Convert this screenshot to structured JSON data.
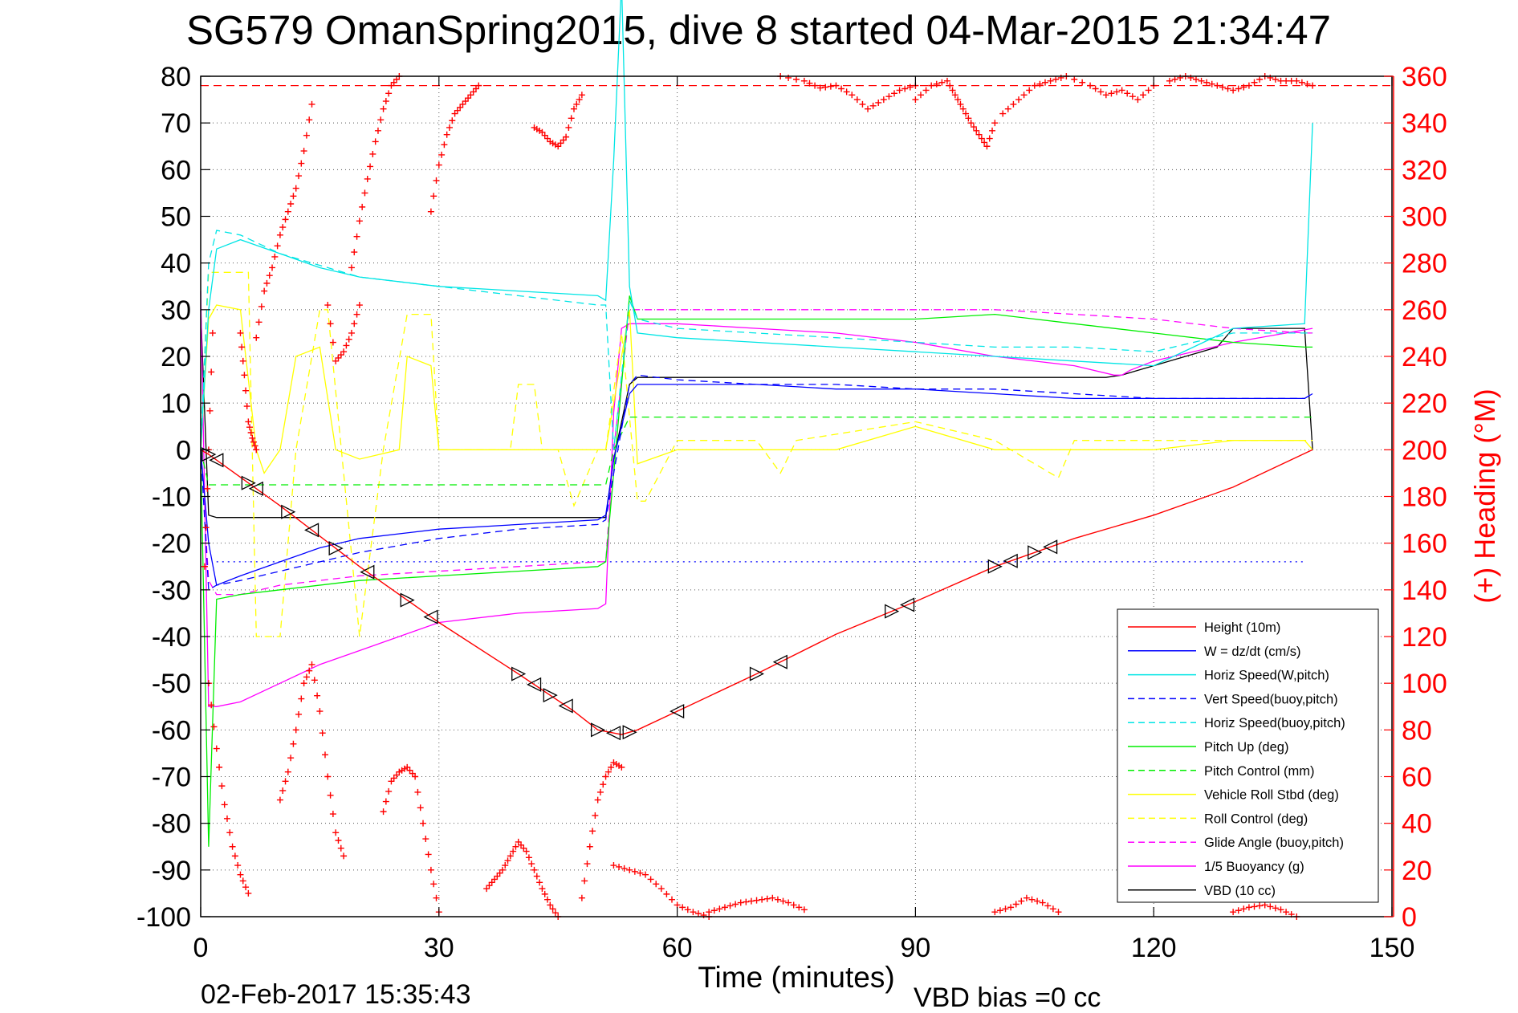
{
  "chart_data": {
    "type": "line",
    "title": "SG579 OmanSpring2015, dive 8 started 04-Mar-2015 21:34:47",
    "xlabel": "Time (minutes)",
    "ylabel_right": "(+) Heading (°M)",
    "xlim": [
      0,
      150
    ],
    "ylim": [
      -100,
      80
    ],
    "ylim_right": [
      0,
      360
    ],
    "x_ticks": [
      "0",
      "30",
      "60",
      "90",
      "120",
      "150"
    ],
    "y_ticks": [
      "80",
      "70",
      "60",
      "50",
      "40",
      "30",
      "20",
      "10",
      "0",
      "-10",
      "-20",
      "-30",
      "-40",
      "-50",
      "-60",
      "-70",
      "-80",
      "-90",
      "-100"
    ],
    "y_right_ticks": [
      "360",
      "340",
      "320",
      "300",
      "280",
      "260",
      "240",
      "220",
      "200",
      "180",
      "160",
      "140",
      "120",
      "100",
      "80",
      "60",
      "40",
      "20",
      "0"
    ],
    "grid": true,
    "legend_position": "bottom-right",
    "footer_left": "02-Feb-2017 15:35:43",
    "footer_right": "VBD bias =0 cc",
    "colors": {
      "red": "#ff0000",
      "blue": "#0000ff",
      "cyan": "#00e5e5",
      "green": "#00ee00",
      "yellow": "#ffff00",
      "magenta": "#ff00ff",
      "black": "#000000"
    },
    "series": [
      {
        "name": "Height (10m)",
        "color": "#ff0000",
        "style": "solid",
        "x": [
          0,
          1,
          10,
          20,
          30,
          40,
          47,
          50,
          53,
          55,
          60,
          70,
          80,
          90,
          100,
          110,
          120,
          130,
          140
        ],
        "y": [
          0,
          -1,
          -12,
          -25,
          -37,
          -48,
          -56,
          -60,
          -61,
          -60,
          -56,
          -48,
          -39.5,
          -32.5,
          -25,
          -19,
          -14,
          -8,
          0
        ]
      },
      {
        "name": "W = dz/dt (cm/s)",
        "color": "#0000ff",
        "style": "solid",
        "x": [
          0,
          1,
          2,
          5,
          10,
          15,
          20,
          30,
          40,
          50,
          51,
          52,
          53,
          54,
          55,
          60,
          70,
          80,
          90,
          100,
          110,
          120,
          130,
          139,
          140
        ],
        "y": [
          0,
          -20,
          -29,
          -27,
          -24,
          -21,
          -19,
          -17,
          -16,
          -15,
          -14,
          -2,
          5,
          12,
          14,
          14,
          14,
          13,
          13,
          12,
          11,
          11,
          11,
          11,
          12
        ]
      },
      {
        "name": "Horiz Speed(W,pitch)",
        "color": "#00e5e5",
        "style": "solid",
        "x": [
          0,
          1,
          2,
          5,
          10,
          15,
          20,
          30,
          40,
          50,
          51,
          52,
          53,
          54,
          55,
          60,
          70,
          80,
          90,
          100,
          110,
          120,
          125,
          130,
          139,
          140
        ],
        "y": [
          0,
          30,
          43,
          45,
          42,
          39,
          37,
          35,
          34,
          33,
          32,
          62,
          100,
          35,
          25,
          24,
          23,
          22,
          21,
          20,
          19,
          18,
          22,
          26,
          27,
          70
        ]
      },
      {
        "name": "Vert Speed(buoy,pitch)",
        "color": "#0000ff",
        "style": "dashed",
        "x": [
          0,
          1,
          2,
          5,
          10,
          20,
          30,
          40,
          50,
          51,
          52,
          54,
          55,
          60,
          70,
          80,
          90,
          100,
          110,
          120,
          130,
          139,
          140
        ],
        "y": [
          0,
          -30,
          -29,
          -28,
          -26,
          -22,
          -19,
          -17,
          -16,
          -15,
          -5,
          14,
          16,
          15,
          14,
          14,
          13,
          13,
          12,
          11,
          11,
          11,
          12
        ]
      },
      {
        "name": "Horiz Speed(buoy,pitch)",
        "color": "#00e5e5",
        "style": "dashed",
        "x": [
          0,
          1,
          2,
          5,
          10,
          20,
          30,
          40,
          50,
          51,
          52,
          54,
          55,
          60,
          70,
          80,
          90,
          100,
          110,
          120,
          130,
          139,
          140
        ],
        "y": [
          0,
          40,
          47,
          46,
          42,
          37,
          35,
          33,
          31,
          31,
          0,
          32,
          28,
          26,
          25,
          24,
          23,
          22,
          22,
          21,
          25,
          25,
          25
        ]
      },
      {
        "name": "Pitch Up (deg)",
        "color": "#00ee00",
        "style": "solid",
        "x": [
          0,
          1,
          2,
          5,
          10,
          20,
          30,
          40,
          50,
          51,
          52,
          54,
          55,
          60,
          70,
          80,
          90,
          100,
          110,
          120,
          130,
          139,
          140
        ],
        "y": [
          0,
          -85,
          -32,
          -31,
          -30,
          -28,
          -27,
          -26,
          -25,
          -24,
          -5,
          33,
          28,
          28,
          28,
          28,
          28,
          29,
          27,
          25,
          23,
          22,
          22
        ]
      },
      {
        "name": "Pitch Control (mm)",
        "color": "#00ee00",
        "style": "dashed",
        "x": [
          0,
          1,
          2,
          5,
          50,
          51,
          52,
          54,
          55,
          140
        ],
        "y": [
          0,
          -7.5,
          -7.5,
          -7.5,
          -7.5,
          -7.5,
          0,
          7,
          7,
          7
        ]
      },
      {
        "name": "Vehicle Roll Stbd (deg)",
        "color": "#ffff00",
        "style": "solid",
        "x": [
          0,
          1,
          2,
          5,
          7,
          8,
          10,
          12,
          15,
          17,
          20,
          25,
          26,
          29,
          30,
          40,
          50,
          51,
          54,
          55,
          60,
          70,
          80,
          90,
          100,
          110,
          120,
          130,
          139,
          140
        ],
        "y": [
          0,
          28,
          31,
          30,
          0,
          -5,
          0,
          20,
          22,
          0,
          -2,
          0,
          20,
          18,
          0,
          0,
          0,
          0,
          30,
          -3,
          0,
          0,
          0,
          5,
          0,
          0,
          0,
          2,
          2,
          0
        ]
      },
      {
        "name": "Roll Control (deg)",
        "color": "#ffff00",
        "style": "dashed",
        "x": [
          0,
          1,
          2,
          6,
          7,
          10,
          12,
          15,
          16,
          20,
          23,
          26,
          29,
          30,
          39,
          40,
          42,
          43,
          45,
          47,
          50,
          51,
          53,
          55,
          56,
          60,
          70,
          73,
          75,
          90,
          100,
          108,
          110,
          140
        ],
        "y": [
          0,
          38,
          38,
          38,
          -40,
          -40,
          0,
          30,
          30,
          -40,
          0,
          29,
          29,
          0,
          0,
          14,
          14,
          0,
          0,
          -12,
          0,
          0,
          25,
          -11,
          -11,
          2,
          2,
          -5,
          2,
          6,
          2,
          -6,
          2,
          2
        ]
      },
      {
        "name": "Glide Angle (buoy,pitch)",
        "color": "#ff00ff",
        "style": "dashed",
        "x": [
          0,
          1,
          2,
          5,
          10,
          20,
          30,
          40,
          50,
          51,
          52,
          54,
          55,
          60,
          70,
          80,
          90,
          100,
          110,
          120,
          130,
          139,
          140
        ],
        "y": [
          0,
          -28,
          -31,
          -31,
          -29,
          -27,
          -26,
          -25,
          -24,
          -24,
          0,
          30,
          30,
          30,
          30,
          30,
          30,
          30,
          29,
          28,
          26,
          25,
          25
        ]
      },
      {
        "name": "1/5 Buoyancy (g)",
        "color": "#ff00ff",
        "style": "solid",
        "x": [
          0,
          1,
          2,
          5,
          10,
          15,
          20,
          25,
          30,
          40,
          50,
          51,
          52,
          53,
          54,
          55,
          60,
          70,
          80,
          90,
          100,
          110,
          115,
          116,
          117,
          120,
          130,
          140
        ],
        "y": [
          34,
          -55,
          -55,
          -54,
          -50,
          -46,
          -43,
          -40,
          -37,
          -35,
          -34,
          -33,
          8,
          26,
          27,
          27,
          27,
          26,
          25,
          23,
          20,
          18,
          16,
          16,
          17,
          19,
          23,
          26
        ]
      },
      {
        "name": "VBD (10 cc)",
        "color": "#000000",
        "style": "solid",
        "x": [
          0,
          1,
          2,
          51,
          52,
          54,
          55,
          60,
          114,
          116,
          118,
          120,
          122,
          124,
          126,
          128,
          130,
          139,
          140
        ],
        "y": [
          30,
          -14,
          -14.5,
          -14.5,
          -2,
          14,
          15.5,
          15.5,
          15.5,
          16,
          17,
          18,
          19,
          20,
          21,
          22,
          26,
          26,
          0
        ]
      },
      {
        "name": "Blue dotted reference",
        "color": "#0000ff",
        "style": "dotted",
        "x": [
          2,
          139
        ],
        "y": [
          -24,
          -24
        ]
      }
    ],
    "heading_series": {
      "name": "(+) Heading (°M)",
      "axis": "right",
      "color": "#ff0000",
      "marker": "+",
      "reference_line": 356,
      "segments": [
        {
          "x": [
            0.5,
            1,
            1.5
          ],
          "y": [
            150,
            200,
            250
          ]
        },
        {
          "x": [
            5,
            5.5,
            6,
            6.5,
            7
          ],
          "y": [
            250,
            232,
            212,
            205,
            200
          ]
        },
        {
          "x": [
            7,
            8,
            9,
            10,
            11,
            12,
            13,
            14
          ],
          "y": [
            248,
            268,
            278,
            292,
            302,
            312,
            328,
            348
          ]
        },
        {
          "x": [
            16,
            17,
            18,
            19,
            20
          ],
          "y": [
            262,
            238,
            242,
            250,
            262
          ]
        },
        {
          "x": [
            19,
            20,
            21,
            22,
            23,
            24,
            25
          ],
          "y": [
            278,
            298,
            316,
            332,
            346,
            356,
            360
          ]
        },
        {
          "x": [
            29,
            30,
            31,
            32,
            33,
            34,
            35
          ],
          "y": [
            302,
            322,
            335,
            344,
            348,
            352,
            356
          ]
        },
        {
          "x": [
            42,
            43,
            44,
            45,
            46,
            47,
            48
          ],
          "y": [
            338,
            336,
            332,
            330,
            334,
            346,
            352
          ]
        },
        {
          "x": [
            1,
            2,
            3,
            4,
            5,
            6
          ],
          "y": [
            100,
            72,
            48,
            30,
            18,
            10
          ]
        },
        {
          "x": [
            10,
            11,
            12,
            13,
            14,
            15,
            16,
            17,
            18
          ],
          "y": [
            50,
            62,
            80,
            100,
            108,
            88,
            60,
            36,
            26
          ]
        },
        {
          "x": [
            23,
            24,
            25,
            26,
            27,
            28,
            29,
            30
          ],
          "y": [
            45,
            58,
            62,
            64,
            60,
            40,
            20,
            2
          ]
        },
        {
          "x": [
            36,
            37,
            38,
            39,
            40,
            41,
            42,
            43,
            44,
            45
          ],
          "y": [
            12,
            16,
            20,
            26,
            32,
            28,
            20,
            12,
            5,
            0
          ]
        },
        {
          "x": [
            48,
            49,
            50,
            51,
            52,
            53
          ],
          "y": [
            8,
            30,
            50,
            60,
            66,
            64
          ]
        },
        {
          "x": [
            52,
            54,
            56,
            58,
            60,
            62,
            64
          ],
          "y": [
            22,
            20,
            18,
            12,
            5,
            2,
            0
          ]
        },
        {
          "x": [
            64,
            66,
            68,
            70,
            72,
            74,
            76
          ],
          "y": [
            2,
            4,
            6,
            7,
            8,
            6,
            3
          ]
        },
        {
          "x": [
            73,
            76,
            78,
            80,
            82,
            84,
            86,
            88,
            90
          ],
          "y": [
            360,
            358,
            355,
            356,
            352,
            346,
            350,
            354,
            356
          ]
        },
        {
          "x": [
            90,
            92,
            94,
            95,
            96,
            97,
            98,
            99,
            100
          ],
          "y": [
            350,
            356,
            358,
            352,
            346,
            340,
            335,
            330,
            340
          ]
        },
        {
          "x": [
            101,
            103,
            105,
            107,
            109,
            112,
            114,
            116,
            118,
            120
          ],
          "y": [
            344,
            350,
            356,
            358,
            360,
            356,
            352,
            354,
            350,
            356
          ]
        },
        {
          "x": [
            122,
            124,
            126,
            128,
            130,
            132,
            134,
            136,
            138,
            140
          ],
          "y": [
            358,
            360,
            358,
            356,
            354,
            356,
            360,
            358,
            358,
            356
          ]
        },
        {
          "x": [
            100,
            102,
            104,
            106,
            108
          ],
          "y": [
            2,
            4,
            8,
            6,
            2
          ]
        },
        {
          "x": [
            130,
            132,
            134,
            136,
            138
          ],
          "y": [
            2,
            4,
            5,
            3,
            0
          ]
        }
      ]
    },
    "markers": {
      "type": "triangles on height line",
      "x": [
        1,
        2,
        6,
        7,
        11,
        14,
        17,
        21,
        26,
        29,
        40,
        42,
        44,
        46,
        50,
        52,
        54,
        60,
        70,
        73,
        87,
        89,
        100,
        102,
        105,
        107
      ]
    },
    "legend": [
      {
        "label": "Height (10m)",
        "color": "#ff0000",
        "style": "solid"
      },
      {
        "label": "W = dz/dt (cm/s)",
        "color": "#0000ff",
        "style": "solid"
      },
      {
        "label": "Horiz Speed(W,pitch)",
        "color": "#00e5e5",
        "style": "solid"
      },
      {
        "label": "Vert Speed(buoy,pitch)",
        "color": "#0000ff",
        "style": "dashed"
      },
      {
        "label": "Horiz Speed(buoy,pitch)",
        "color": "#00e5e5",
        "style": "dashed"
      },
      {
        "label": "Pitch Up (deg)",
        "color": "#00ee00",
        "style": "solid"
      },
      {
        "label": "Pitch Control (mm)",
        "color": "#00ee00",
        "style": "dashed"
      },
      {
        "label": "Vehicle Roll Stbd (deg)",
        "color": "#ffff00",
        "style": "solid"
      },
      {
        "label": "Roll Control (deg)",
        "color": "#ffff00",
        "style": "dashed"
      },
      {
        "label": "Glide Angle (buoy,pitch)",
        "color": "#ff00ff",
        "style": "dashed"
      },
      {
        "label": "1/5 Buoyancy (g)",
        "color": "#ff00ff",
        "style": "solid"
      },
      {
        "label": "VBD (10 cc)",
        "color": "#000000",
        "style": "solid"
      }
    ]
  }
}
